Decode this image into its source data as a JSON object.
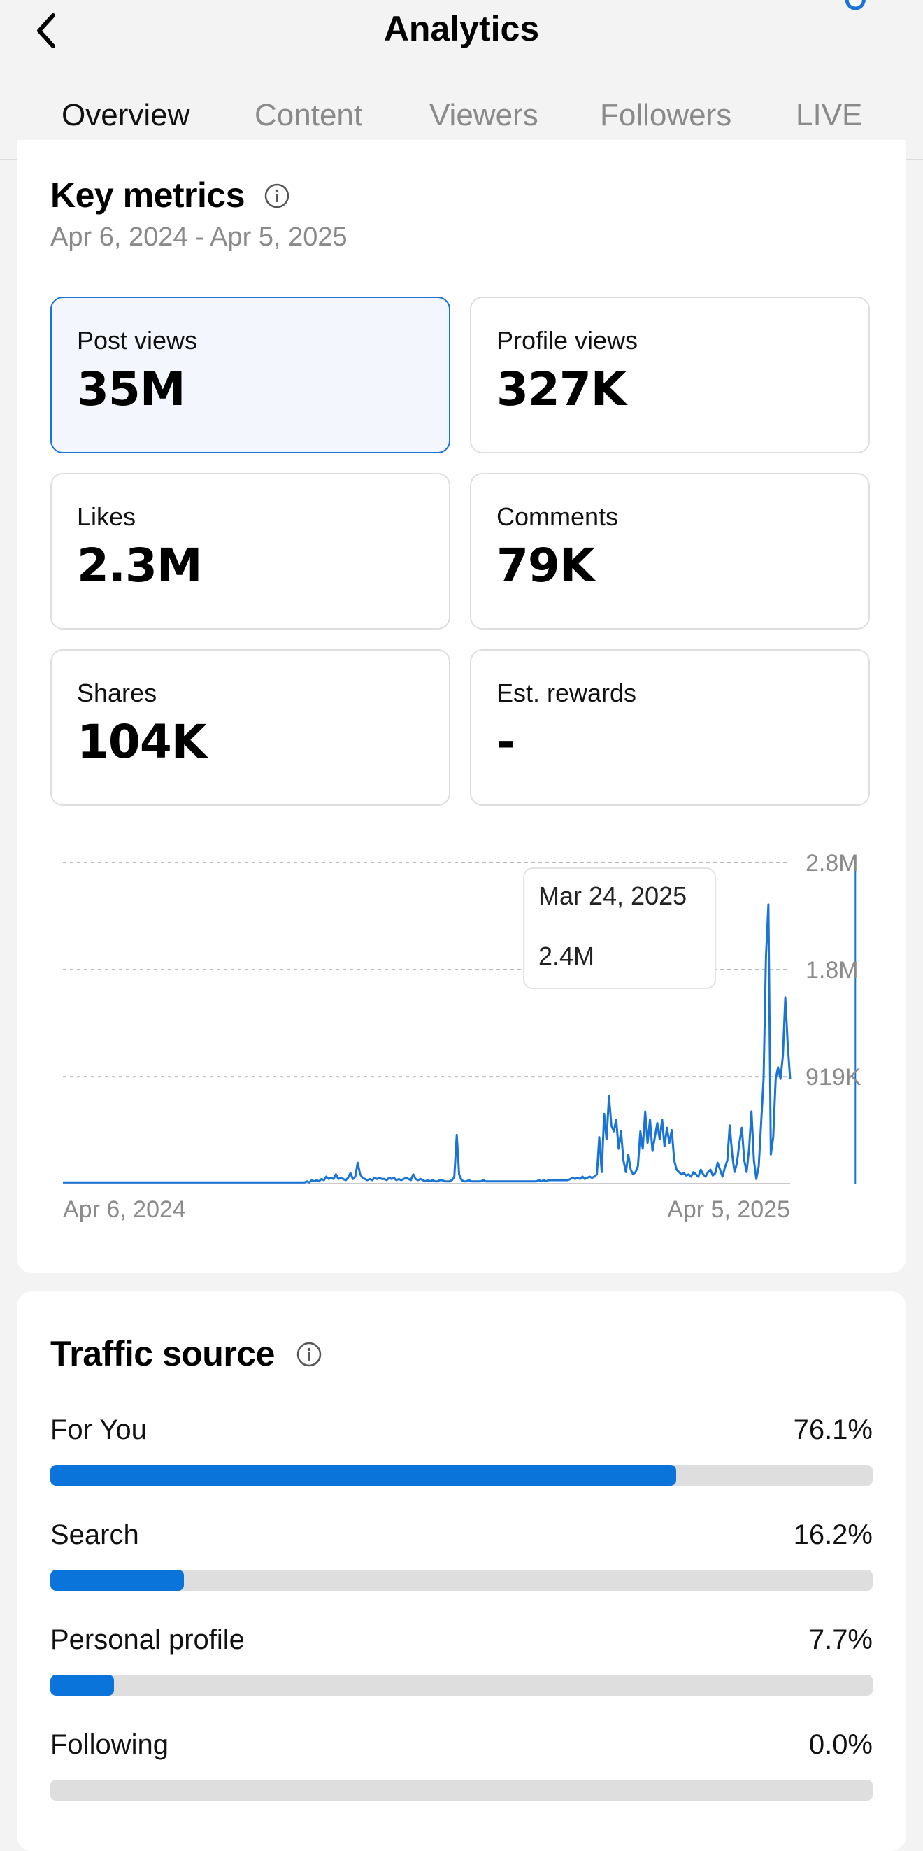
{
  "header": {
    "title": "Analytics",
    "tabs": [
      "Overview",
      "Content",
      "Viewers",
      "Followers",
      "LIVE"
    ],
    "active_tab": "Overview"
  },
  "key_metrics": {
    "title": "Key metrics",
    "date_range": "Apr 6, 2024 - Apr 5, 2025",
    "metrics": [
      {
        "label": "Post views",
        "value": "35M"
      },
      {
        "label": "Profile views",
        "value": "327K"
      },
      {
        "label": "Likes",
        "value": "2.3M"
      },
      {
        "label": "Comments",
        "value": "79K"
      },
      {
        "label": "Shares",
        "value": "104K"
      },
      {
        "label": "Est. rewards",
        "value": "-"
      }
    ],
    "selected_metric": "Post views"
  },
  "chart_data": {
    "type": "line",
    "xlabels": [
      "Apr 6, 2024",
      "Apr 5, 2025"
    ],
    "ytick_labels": [
      "2.8M",
      "1.8M",
      "919K"
    ],
    "ylim": [
      0,
      2.76
    ],
    "grid": true,
    "color": "#1a74d6",
    "tooltip": {
      "date": "Mar 24, 2025",
      "value": "2.4M"
    },
    "values": [
      0.01,
      0.01,
      0.01,
      0.01,
      0.01,
      0.01,
      0.01,
      0.01,
      0.01,
      0.01,
      0.01,
      0.01,
      0.01,
      0.01,
      0.01,
      0.01,
      0.01,
      0.01,
      0.01,
      0.01,
      0.01,
      0.01,
      0.01,
      0.01,
      0.01,
      0.01,
      0.01,
      0.01,
      0.01,
      0.01,
      0.01,
      0.01,
      0.01,
      0.01,
      0.01,
      0.01,
      0.01,
      0.01,
      0.01,
      0.01,
      0.01,
      0.01,
      0.01,
      0.01,
      0.01,
      0.01,
      0.01,
      0.01,
      0.01,
      0.01,
      0.01,
      0.01,
      0.01,
      0.01,
      0.01,
      0.01,
      0.01,
      0.01,
      0.01,
      0.01,
      0.01,
      0.01,
      0.01,
      0.01,
      0.01,
      0.01,
      0.01,
      0.01,
      0.01,
      0.01,
      0.01,
      0.01,
      0.01,
      0.01,
      0.01,
      0.01,
      0.01,
      0.01,
      0.01,
      0.01,
      0.01,
      0.01,
      0.01,
      0.01,
      0.01,
      0.01,
      0.01,
      0.01,
      0.01,
      0.01,
      0.01,
      0.01,
      0.01,
      0.01,
      0.01,
      0.01,
      0.01,
      0.01,
      0.01,
      0.01,
      0.01,
      0.02,
      0.01,
      0.03,
      0.02,
      0.03,
      0.02,
      0.04,
      0.03,
      0.06,
      0.04,
      0.05,
      0.04,
      0.08,
      0.04,
      0.05,
      0.04,
      0.03,
      0.05,
      0.09,
      0.04,
      0.06,
      0.18,
      0.08,
      0.05,
      0.04,
      0.03,
      0.04,
      0.03,
      0.05,
      0.04,
      0.05,
      0.04,
      0.04,
      0.03,
      0.05,
      0.04,
      0.05,
      0.03,
      0.04,
      0.03,
      0.04,
      0.05,
      0.04,
      0.03,
      0.08,
      0.04,
      0.03,
      0.04,
      0.03,
      0.02,
      0.03,
      0.02,
      0.03,
      0.02,
      0.02,
      0.03,
      0.03,
      0.02,
      0.02,
      0.02,
      0.03,
      0.06,
      0.42,
      0.08,
      0.03,
      0.02,
      0.02,
      0.03,
      0.02,
      0.02,
      0.02,
      0.02,
      0.02,
      0.03,
      0.02,
      0.02,
      0.02,
      0.02,
      0.02,
      0.02,
      0.02,
      0.02,
      0.02,
      0.02,
      0.02,
      0.02,
      0.02,
      0.02,
      0.02,
      0.02,
      0.02,
      0.02,
      0.02,
      0.02,
      0.02,
      0.02,
      0.03,
      0.02,
      0.03,
      0.02,
      0.03,
      0.03,
      0.03,
      0.03,
      0.03,
      0.03,
      0.03,
      0.03,
      0.03,
      0.04,
      0.05,
      0.04,
      0.05,
      0.04,
      0.06,
      0.04,
      0.05,
      0.06,
      0.05,
      0.06,
      0.08,
      0.4,
      0.1,
      0.6,
      0.38,
      0.75,
      0.5,
      0.45,
      0.55,
      0.3,
      0.45,
      0.2,
      0.1,
      0.25,
      0.12,
      0.08,
      0.1,
      0.15,
      0.45,
      0.3,
      0.62,
      0.35,
      0.55,
      0.28,
      0.4,
      0.52,
      0.38,
      0.55,
      0.32,
      0.48,
      0.35,
      0.46,
      0.2,
      0.12,
      0.1,
      0.08,
      0.09,
      0.07,
      0.08,
      0.06,
      0.1,
      0.08,
      0.06,
      0.12,
      0.08,
      0.06,
      0.1,
      0.12,
      0.07,
      0.09,
      0.18,
      0.12,
      0.06,
      0.14,
      0.2,
      0.5,
      0.25,
      0.1,
      0.18,
      0.35,
      0.48,
      0.2,
      0.1,
      0.3,
      0.62,
      0.2,
      0.04,
      0.15,
      0.52,
      0.9,
      1.95,
      2.4,
      0.25,
      0.4,
      0.9,
      1.0,
      0.9,
      1.1,
      1.6,
      1.2,
      0.9
    ],
    "highlight_index": 328
  },
  "traffic_source": {
    "title": "Traffic source",
    "color": "#0a74da",
    "items": [
      {
        "label": "For You",
        "pct_text": "76.1%",
        "value": 76.1
      },
      {
        "label": "Search",
        "pct_text": "16.2%",
        "value": 16.2
      },
      {
        "label": "Personal profile",
        "pct_text": "7.7%",
        "value": 7.7
      },
      {
        "label": "Following",
        "pct_text": "0.0%",
        "value": 0.0
      }
    ]
  }
}
